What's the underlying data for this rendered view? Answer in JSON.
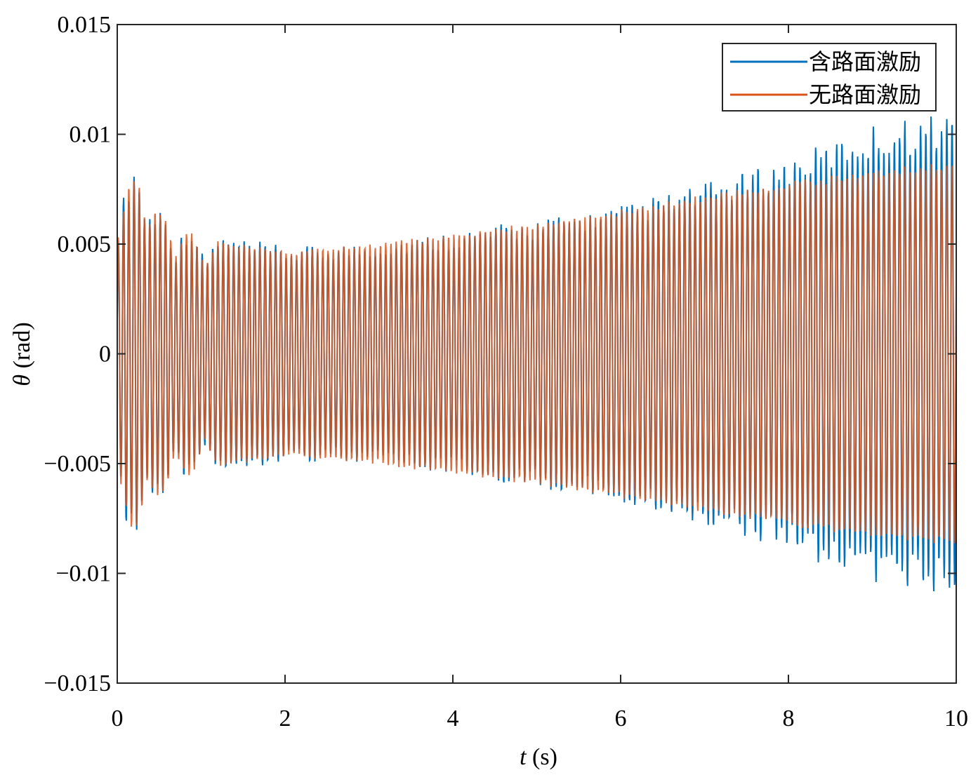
{
  "chart_data": {
    "type": "line",
    "title": "",
    "xlabel_var": "t",
    "xlabel_unit": " (s)",
    "ylabel_var": "θ",
    "ylabel_unit": " (rad)",
    "xlim": [
      0,
      10
    ],
    "ylim": [
      -0.015,
      0.015
    ],
    "x_ticks": [
      0,
      2,
      4,
      6,
      8,
      10
    ],
    "x_tick_labels": [
      "0",
      "2",
      "4",
      "6",
      "8",
      "10"
    ],
    "y_ticks": [
      0.015,
      0.01,
      0.005,
      0,
      -0.005,
      -0.01,
      -0.015
    ],
    "y_tick_labels": [
      "0.015",
      "0.01",
      "0.005",
      "0",
      "−0.005",
      "−0.01",
      "−0.015"
    ],
    "grid": false,
    "legend_position": "top-right",
    "oscillation_frequency_hz": 16,
    "envelope_times": [
      0,
      0.25,
      0.5,
      1,
      2,
      3,
      4,
      5,
      6,
      7,
      8,
      9,
      10
    ],
    "series": [
      {
        "name": "含路面激励",
        "color": "#0072BD",
        "envelope": [
          0.0075,
          0.009,
          0.0068,
          0.0056,
          0.0049,
          0.0051,
          0.0056,
          0.0062,
          0.0068,
          0.0078,
          0.009,
          0.0105,
          0.0112
        ]
      },
      {
        "name": "无路面激励",
        "color": "#D95319",
        "envelope": [
          0.007,
          0.0084,
          0.0065,
          0.0053,
          0.0047,
          0.005,
          0.0055,
          0.006,
          0.0066,
          0.0073,
          0.0079,
          0.0084,
          0.0088
        ]
      }
    ]
  }
}
